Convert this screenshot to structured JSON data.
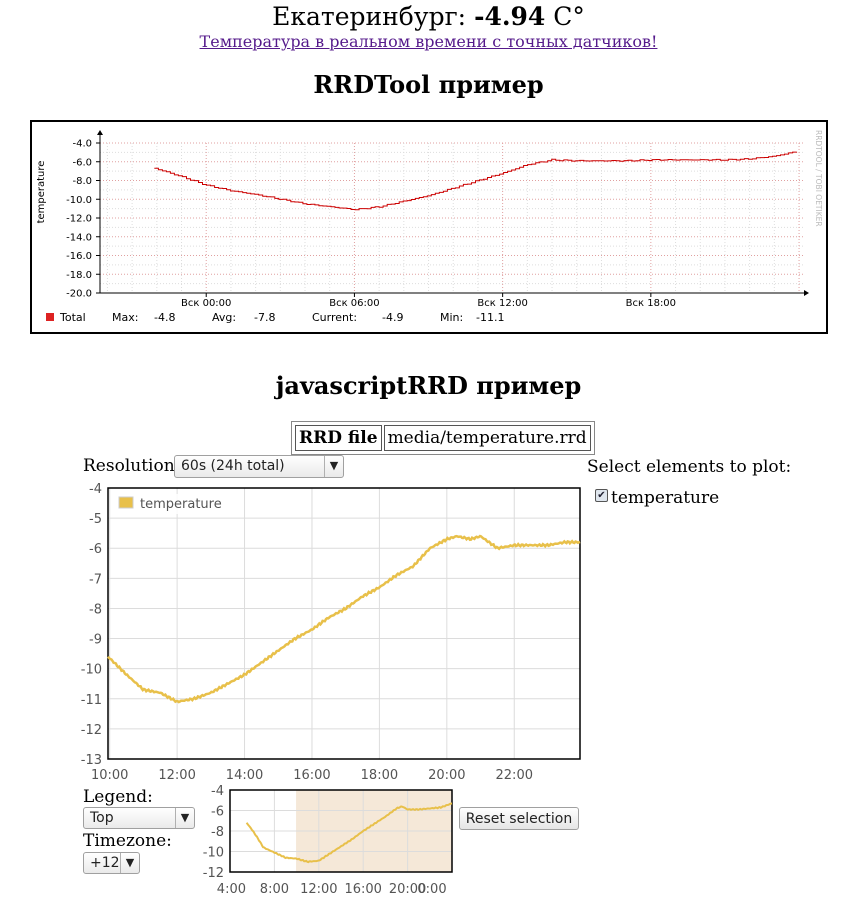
{
  "header": {
    "city_label": "Екатеринбург:",
    "temperature_value": "-4.94",
    "unit": "C°",
    "link_text": "Температура в реальном времени с точных датчиков!"
  },
  "rrdtool_section": {
    "title": "RRDTool пример",
    "watermark": "RRDTOOL / TOBI OETIKER",
    "legend": {
      "name": "Total",
      "max_label": "Max:",
      "max_value": "-4.8",
      "avg_label": "Avg:",
      "avg_value": "-7.8",
      "current_label": "Current:",
      "current_value": "-4.9",
      "min_label": "Min:",
      "min_value": "-11.1"
    },
    "colors": {
      "line": "#cc0000",
      "legend_box": "#dd2222"
    }
  },
  "javascript_section": {
    "title": "javascriptRRD пример",
    "file_label": "RRD file",
    "file_value": "media/temperature.rrd",
    "resolution_label": "Resolution:",
    "resolution_value": "60s (24h total)",
    "select_elements_label": "Select elements to plot:",
    "element_checkbox_label": "temperature",
    "element_checked": true,
    "legend_label": "Legend:",
    "legend_value": "Top",
    "timezone_label": "Timezone:",
    "timezone_value": "+12",
    "reset_button": "Reset selection",
    "colors": {
      "line": "#e8c04a",
      "selection": "#f5e8d8"
    }
  },
  "chart_data": [
    {
      "type": "line",
      "name": "rrdtool-graph",
      "ylabel": "temperature",
      "x_ticks": [
        "Вск 00:00",
        "Вск 06:00",
        "Вск 12:00",
        "Вск 18:00"
      ],
      "x_tick_hours": [
        0,
        6,
        12,
        18
      ],
      "y_ticks": [
        "-4.0",
        "-6.0",
        "-8.0",
        "-10.0",
        "-12.0",
        "-14.0",
        "-16.0",
        "-18.0",
        "-20.0"
      ],
      "ylim": [
        -20,
        -4
      ],
      "xlim_hours": [
        -4.3,
        24.2
      ],
      "grid": true,
      "series": [
        {
          "values_x_hours": [
            -2.1,
            -1,
            0,
            1,
            2,
            3,
            4,
            5,
            6,
            7,
            8,
            9,
            10,
            11,
            12,
            13,
            14,
            15,
            16,
            17,
            18,
            19,
            20,
            21,
            22,
            23,
            23.9
          ],
          "values_y": [
            -6.7,
            -7.6,
            -8.5,
            -9.1,
            -9.5,
            -10,
            -10.5,
            -10.8,
            -11.1,
            -10.8,
            -10.2,
            -9.6,
            -8.8,
            -8,
            -7.2,
            -6.3,
            -5.8,
            -5.9,
            -5.9,
            -5.9,
            -5.8,
            -5.8,
            -5.8,
            -5.8,
            -5.7,
            -5.4,
            -4.9
          ]
        }
      ]
    },
    {
      "type": "line",
      "name": "javascriptrrd-main",
      "x_ticks": [
        "10:00",
        "12:00",
        "14:00",
        "16:00",
        "18:00",
        "20:00",
        "22:00"
      ],
      "x_tick_hours": [
        10,
        12,
        14,
        16,
        18,
        20,
        22
      ],
      "y_ticks": [
        "-4",
        "-5",
        "-6",
        "-7",
        "-8",
        "-9",
        "-10",
        "-11",
        "-12",
        "-13"
      ],
      "ylim": [
        -13,
        -4
      ],
      "xlim_hours": [
        9.95,
        23.95
      ],
      "legend_position": "top-left",
      "grid": true,
      "series": [
        {
          "name": "temperature",
          "values_x_hours": [
            9.95,
            10.5,
            11,
            11.5,
            12,
            12.5,
            13,
            13.5,
            14,
            14.5,
            15,
            15.5,
            16,
            16.5,
            17,
            17.5,
            18,
            18.5,
            19,
            19.5,
            20,
            20.3,
            20.7,
            21,
            21.5,
            22,
            22.5,
            23,
            23.5,
            23.95
          ],
          "values_y": [
            -9.6,
            -10.2,
            -10.7,
            -10.8,
            -11.1,
            -11.0,
            -10.8,
            -10.5,
            -10.2,
            -9.8,
            -9.4,
            -9.0,
            -8.7,
            -8.3,
            -8.0,
            -7.6,
            -7.3,
            -6.9,
            -6.6,
            -6.0,
            -5.7,
            -5.6,
            -5.7,
            -5.6,
            -6.0,
            -5.9,
            -5.9,
            -5.9,
            -5.8,
            -5.8
          ]
        }
      ]
    },
    {
      "type": "line",
      "name": "javascriptrrd-overview",
      "x_ticks": [
        "4:00",
        "8:00",
        "12:00",
        "16:00",
        "20:00",
        "0:00"
      ],
      "x_tick_hours": [
        4,
        8,
        12,
        16,
        20,
        24
      ],
      "y_ticks": [
        "-4",
        "-6",
        "-8",
        "-10",
        "-12"
      ],
      "ylim": [
        -12,
        -4
      ],
      "xlim_hours": [
        4,
        24
      ],
      "selection_hours": [
        9.95,
        23.95
      ],
      "grid": true,
      "series": [
        {
          "values_x_hours": [
            5.5,
            6,
            6.5,
            7,
            8,
            9,
            10,
            11,
            12,
            13,
            14,
            15,
            16,
            17,
            18,
            19,
            19.5,
            20,
            21,
            22,
            23,
            24
          ],
          "values_y": [
            -7.2,
            -7.9,
            -8.7,
            -9.6,
            -10.1,
            -10.6,
            -10.7,
            -11.0,
            -10.9,
            -10.2,
            -9.5,
            -8.8,
            -8.0,
            -7.3,
            -6.6,
            -5.8,
            -5.6,
            -5.9,
            -5.9,
            -5.8,
            -5.7,
            -5.3
          ]
        }
      ]
    }
  ]
}
